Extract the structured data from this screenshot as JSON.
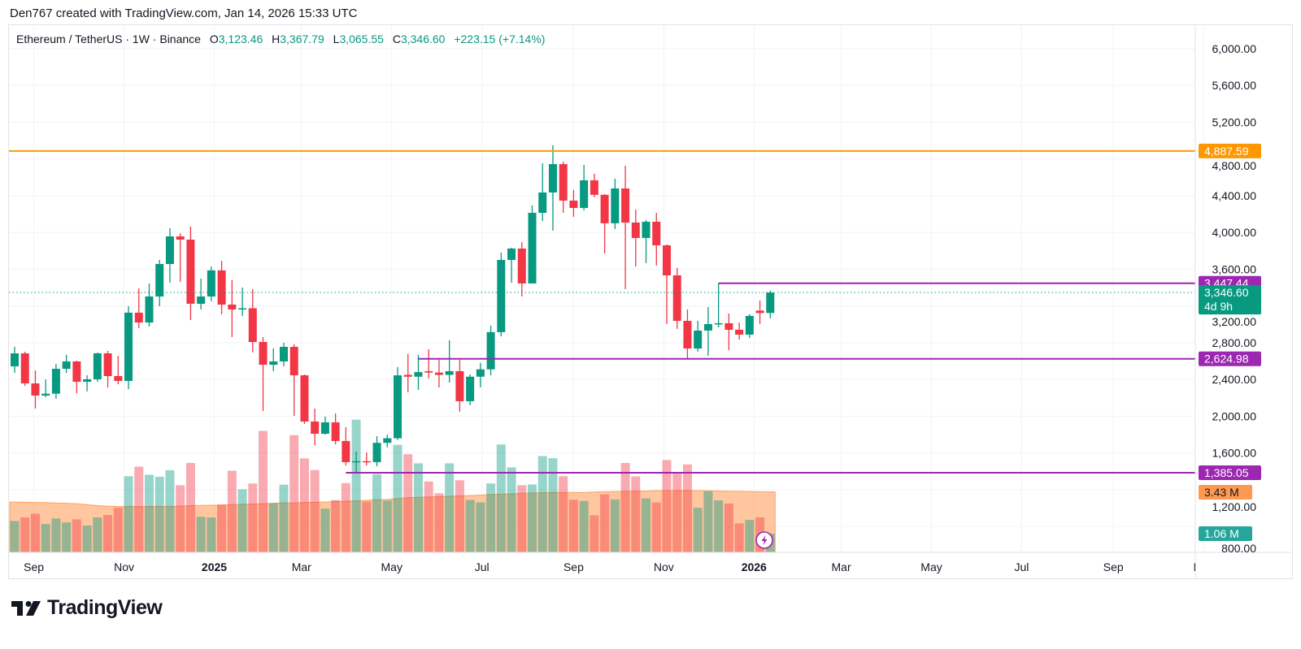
{
  "credit": "Den767 created with TradingView.com, Jan 14, 2026 15:33 UTC",
  "legend": {
    "symbol": "Ethereum / TetherUS · 1W · Binance",
    "open_label": "O",
    "open": "3,123.46",
    "high_label": "H",
    "high": "3,367.79",
    "low_label": "L",
    "low": "3,065.55",
    "close_label": "C",
    "close": "3,346.60",
    "change": "+223.15 (+7.14%)"
  },
  "footer": {
    "logo_text": "TradingView"
  },
  "colors": {
    "up": "#089981",
    "down": "#f23645",
    "resistance": "#ff9800",
    "level": "#9c27b0",
    "volume_ma": "#ff9850",
    "grid": "#f0f3fa"
  },
  "chart_data": {
    "type": "candlestick",
    "title": "Ethereum / TetherUS · 1W · Binance",
    "interval": "1W",
    "ylim": [
      518,
      6265
    ],
    "grid": true,
    "y_ticks": [
      "6,000.00",
      "5,600.00",
      "5,200.00",
      "4,800.00",
      "4,400.00",
      "4,000.00",
      "3,600.00",
      "3,200.00",
      "2,800.00",
      "2,400.00",
      "2,000.00",
      "1,600.00",
      "1,200.00",
      "800.00"
    ],
    "x_labels": [
      {
        "date": "2024-09-01",
        "label": "Sep",
        "bold": false
      },
      {
        "date": "2024-11-01",
        "label": "Nov",
        "bold": false
      },
      {
        "date": "2025-01-01",
        "label": "2025",
        "bold": true
      },
      {
        "date": "2025-03-01",
        "label": "Mar",
        "bold": false
      },
      {
        "date": "2025-05-01",
        "label": "May",
        "bold": false
      },
      {
        "date": "2025-07-01",
        "label": "Jul",
        "bold": false
      },
      {
        "date": "2025-09-01",
        "label": "Sep",
        "bold": false
      },
      {
        "date": "2025-11-01",
        "label": "Nov",
        "bold": false
      },
      {
        "date": "2026-01-01",
        "label": "2026",
        "bold": true
      },
      {
        "date": "2026-03-01",
        "label": "Mar",
        "bold": false
      },
      {
        "date": "2026-05-01",
        "label": "May",
        "bold": false
      },
      {
        "date": "2026-07-01",
        "label": "Jul",
        "bold": false
      },
      {
        "date": "2026-09-01",
        "label": "Sep",
        "bold": false
      },
      {
        "date": "2026-11-01",
        "label": "Nov",
        "bold": false
      }
    ],
    "columns": [
      "date",
      "open",
      "high",
      "low",
      "close",
      "volume_m"
    ],
    "candles": [
      [
        "2024-08-19",
        2543,
        2755,
        2472,
        2684,
        1.78
      ],
      [
        "2024-08-26",
        2684,
        2702,
        2330,
        2357,
        1.98
      ],
      [
        "2024-09-02",
        2357,
        2498,
        2083,
        2225,
        2.19
      ],
      [
        "2024-09-09",
        2225,
        2400,
        2207,
        2245,
        1.61
      ],
      [
        "2024-09-16",
        2245,
        2570,
        2190,
        2516,
        1.92
      ],
      [
        "2024-09-23",
        2516,
        2667,
        2472,
        2596,
        1.7
      ],
      [
        "2024-09-30",
        2596,
        2605,
        2250,
        2375,
        1.87
      ],
      [
        "2024-10-07",
        2375,
        2446,
        2270,
        2402,
        1.52
      ],
      [
        "2024-10-14",
        2402,
        2693,
        2375,
        2684,
        1.98
      ],
      [
        "2024-10-21",
        2684,
        2711,
        2313,
        2437,
        2.12
      ],
      [
        "2024-10-28",
        2437,
        2658,
        2348,
        2384,
        2.53
      ],
      [
        "2024-11-04",
        2384,
        3197,
        2295,
        3127,
        4.32
      ],
      [
        "2024-11-11",
        3127,
        3392,
        2958,
        3020,
        4.86
      ],
      [
        "2024-11-18",
        3020,
        3445,
        2976,
        3303,
        4.4
      ],
      [
        "2024-11-25",
        3303,
        3701,
        3197,
        3657,
        4.29
      ],
      [
        "2024-12-02",
        3657,
        4046,
        3454,
        3957,
        4.66
      ],
      [
        "2024-12-09",
        3957,
        3990,
        3463,
        3922,
        3.81
      ],
      [
        "2024-12-16",
        3922,
        4064,
        3047,
        3224,
        5.07
      ],
      [
        "2024-12-23",
        3224,
        3498,
        3162,
        3303,
        2.02
      ],
      [
        "2024-12-30",
        3303,
        3630,
        3250,
        3587,
        1.98
      ],
      [
        "2025-01-06",
        3587,
        3692,
        3110,
        3215,
        2.71
      ],
      [
        "2025-01-13",
        3215,
        3480,
        2861,
        3162,
        4.63
      ],
      [
        "2025-01-20",
        3162,
        3400,
        3090,
        3175,
        3.58
      ],
      [
        "2025-01-27",
        3175,
        3383,
        2693,
        2808,
        3.91
      ],
      [
        "2025-02-03",
        2808,
        2861,
        2056,
        2560,
        6.89
      ],
      [
        "2025-02-10",
        2560,
        2738,
        2490,
        2596,
        2.79
      ],
      [
        "2025-02-17",
        2596,
        2800,
        2543,
        2755,
        3.84
      ],
      [
        "2025-02-24",
        2755,
        2782,
        2004,
        2445,
        6.65
      ],
      [
        "2025-03-03",
        2445,
        2455,
        1915,
        1942,
        5.33
      ],
      [
        "2025-03-10",
        1942,
        2083,
        1685,
        1809,
        4.67
      ],
      [
        "2025-03-17",
        1809,
        1995,
        1800,
        1933,
        2.48
      ],
      [
        "2025-03-24",
        1933,
        2030,
        1694,
        1730,
        2.97
      ],
      [
        "2025-03-31",
        1730,
        1880,
        1464,
        1500,
        3.93
      ],
      [
        "2025-04-07",
        1500,
        1615,
        1385.05,
        1510,
        7.53
      ],
      [
        "2025-04-14",
        1510,
        1605,
        1464,
        1500,
        2.88
      ],
      [
        "2025-04-21",
        1500,
        1783,
        1455,
        1710,
        4.43
      ],
      [
        "2025-04-28",
        1710,
        1800,
        1660,
        1760,
        2.94
      ],
      [
        "2025-05-05",
        1760,
        2534,
        1740,
        2445,
        6.1
      ],
      [
        "2025-05-12",
        2450,
        2676,
        2260,
        2430,
        5.57
      ],
      [
        "2025-05-19",
        2430,
        2667,
        2287,
        2480,
        5.05
      ],
      [
        "2025-05-26",
        2490,
        2729,
        2410,
        2475,
        4.02
      ],
      [
        "2025-06-02",
        2475,
        2614,
        2313,
        2450,
        3.35
      ],
      [
        "2025-06-09",
        2450,
        2826,
        2366,
        2490,
        5.05
      ],
      [
        "2025-06-16",
        2490,
        2614,
        2048,
        2163,
        4.09
      ],
      [
        "2025-06-23",
        2163,
        2455,
        2120,
        2430,
        2.97
      ],
      [
        "2025-06-30",
        2430,
        2580,
        2313,
        2510,
        2.83
      ],
      [
        "2025-07-07",
        2510,
        2985,
        2445,
        2915,
        3.91
      ],
      [
        "2025-07-14",
        2915,
        3781,
        2870,
        3701,
        6.12
      ],
      [
        "2025-07-21",
        3701,
        3834,
        3454,
        3825,
        4.82
      ],
      [
        "2025-07-28",
        3825,
        3896,
        3303,
        3445,
        3.81
      ],
      [
        "2025-08-04",
        3445,
        4294,
        3445,
        4214,
        3.85
      ],
      [
        "2025-08-11",
        4214,
        4753,
        4125,
        4435,
        5.46
      ],
      [
        "2025-08-18",
        4435,
        4950,
        4020,
        4744,
        5.34
      ],
      [
        "2025-08-25",
        4744,
        4770,
        4214,
        4347,
        4.32
      ],
      [
        "2025-09-01",
        4347,
        4462,
        4170,
        4267,
        2.98
      ],
      [
        "2025-09-08",
        4267,
        4735,
        4240,
        4568,
        2.91
      ],
      [
        "2025-09-15",
        4568,
        4640,
        4382,
        4410,
        2.1
      ],
      [
        "2025-09-22",
        4410,
        4417,
        3772,
        4100,
        3.29
      ],
      [
        "2025-09-29",
        4100,
        4585,
        4037,
        4479,
        3.0
      ],
      [
        "2025-10-06",
        4479,
        4727,
        3383,
        4108,
        5.07
      ],
      [
        "2025-10-13",
        4108,
        4250,
        3630,
        3940,
        4.31
      ],
      [
        "2025-10-20",
        3940,
        4135,
        3666,
        4117,
        3.06
      ],
      [
        "2025-10-27",
        4117,
        4214,
        3640,
        3860,
        2.83
      ],
      [
        "2025-11-03",
        3860,
        3869,
        3003,
        3533,
        5.24
      ],
      [
        "2025-11-10",
        3533,
        3613,
        2950,
        3038,
        4.52
      ],
      [
        "2025-11-17",
        3038,
        3162,
        2624.98,
        2737,
        4.99
      ],
      [
        "2025-11-24",
        2737,
        3038,
        2702,
        2932,
        2.53
      ],
      [
        "2025-12-01",
        2932,
        3188,
        2658,
        3003,
        3.47
      ],
      [
        "2025-12-08",
        3003,
        3447.44,
        2967,
        3012,
        2.95
      ],
      [
        "2025-12-15",
        3012,
        3118,
        2720,
        2941,
        2.77
      ],
      [
        "2025-12-22",
        2941,
        3020,
        2834,
        2888,
        1.64
      ],
      [
        "2025-12-29",
        2888,
        3110,
        2852,
        3092,
        1.84
      ],
      [
        "2026-01-05",
        3150,
        3260,
        3003,
        3123.46,
        1.98
      ],
      [
        "2026-01-12",
        3123.46,
        3367.79,
        3065.55,
        3346.6,
        1.06
      ]
    ],
    "volume_ma": [
      2.85,
      2.84,
      2.83,
      2.82,
      2.8,
      2.78,
      2.76,
      2.7,
      2.65,
      2.62,
      2.6,
      2.6,
      2.6,
      2.6,
      2.6,
      2.6,
      2.62,
      2.65,
      2.66,
      2.67,
      2.68,
      2.7,
      2.72,
      2.74,
      2.76,
      2.78,
      2.8,
      2.8,
      2.82,
      2.84,
      2.86,
      2.88,
      2.9,
      2.92,
      2.95,
      2.98,
      3.0,
      3.05,
      3.1,
      3.12,
      3.14,
      3.16,
      3.18,
      3.2,
      3.22,
      3.25,
      3.28,
      3.3,
      3.32,
      3.35,
      3.37,
      3.38,
      3.4,
      3.4,
      3.4,
      3.4,
      3.42,
      3.44,
      3.45,
      3.46,
      3.47,
      3.48,
      3.5,
      3.5,
      3.5,
      3.5,
      3.5,
      3.49,
      3.48,
      3.47,
      3.46,
      3.45,
      3.44,
      3.43
    ],
    "horizontal_lines": [
      {
        "name": "resistance-4887",
        "price": 4887.59,
        "label": "4,887.59",
        "color": "#ff9800",
        "from": "2024-08-12",
        "style": "solid"
      },
      {
        "name": "level-3447",
        "price": 3447.44,
        "label": "3,447.44",
        "color": "#9c27b0",
        "from": "2025-12-08",
        "style": "solid"
      },
      {
        "name": "level-2624",
        "price": 2624.98,
        "label": "2,624.98",
        "color": "#9c27b0",
        "from": "2025-05-19",
        "style": "solid"
      },
      {
        "name": "level-1385",
        "price": 1385.05,
        "label": "1,385.05",
        "color": "#9c27b0",
        "from": "2025-03-31",
        "style": "solid"
      }
    ],
    "last_price": {
      "price": 3346.6,
      "label": "3,346.60",
      "countdown": "4d 9h",
      "color": "#089981"
    },
    "volume_ma_label": "3.43 M",
    "volume_label": "1.06 M"
  }
}
